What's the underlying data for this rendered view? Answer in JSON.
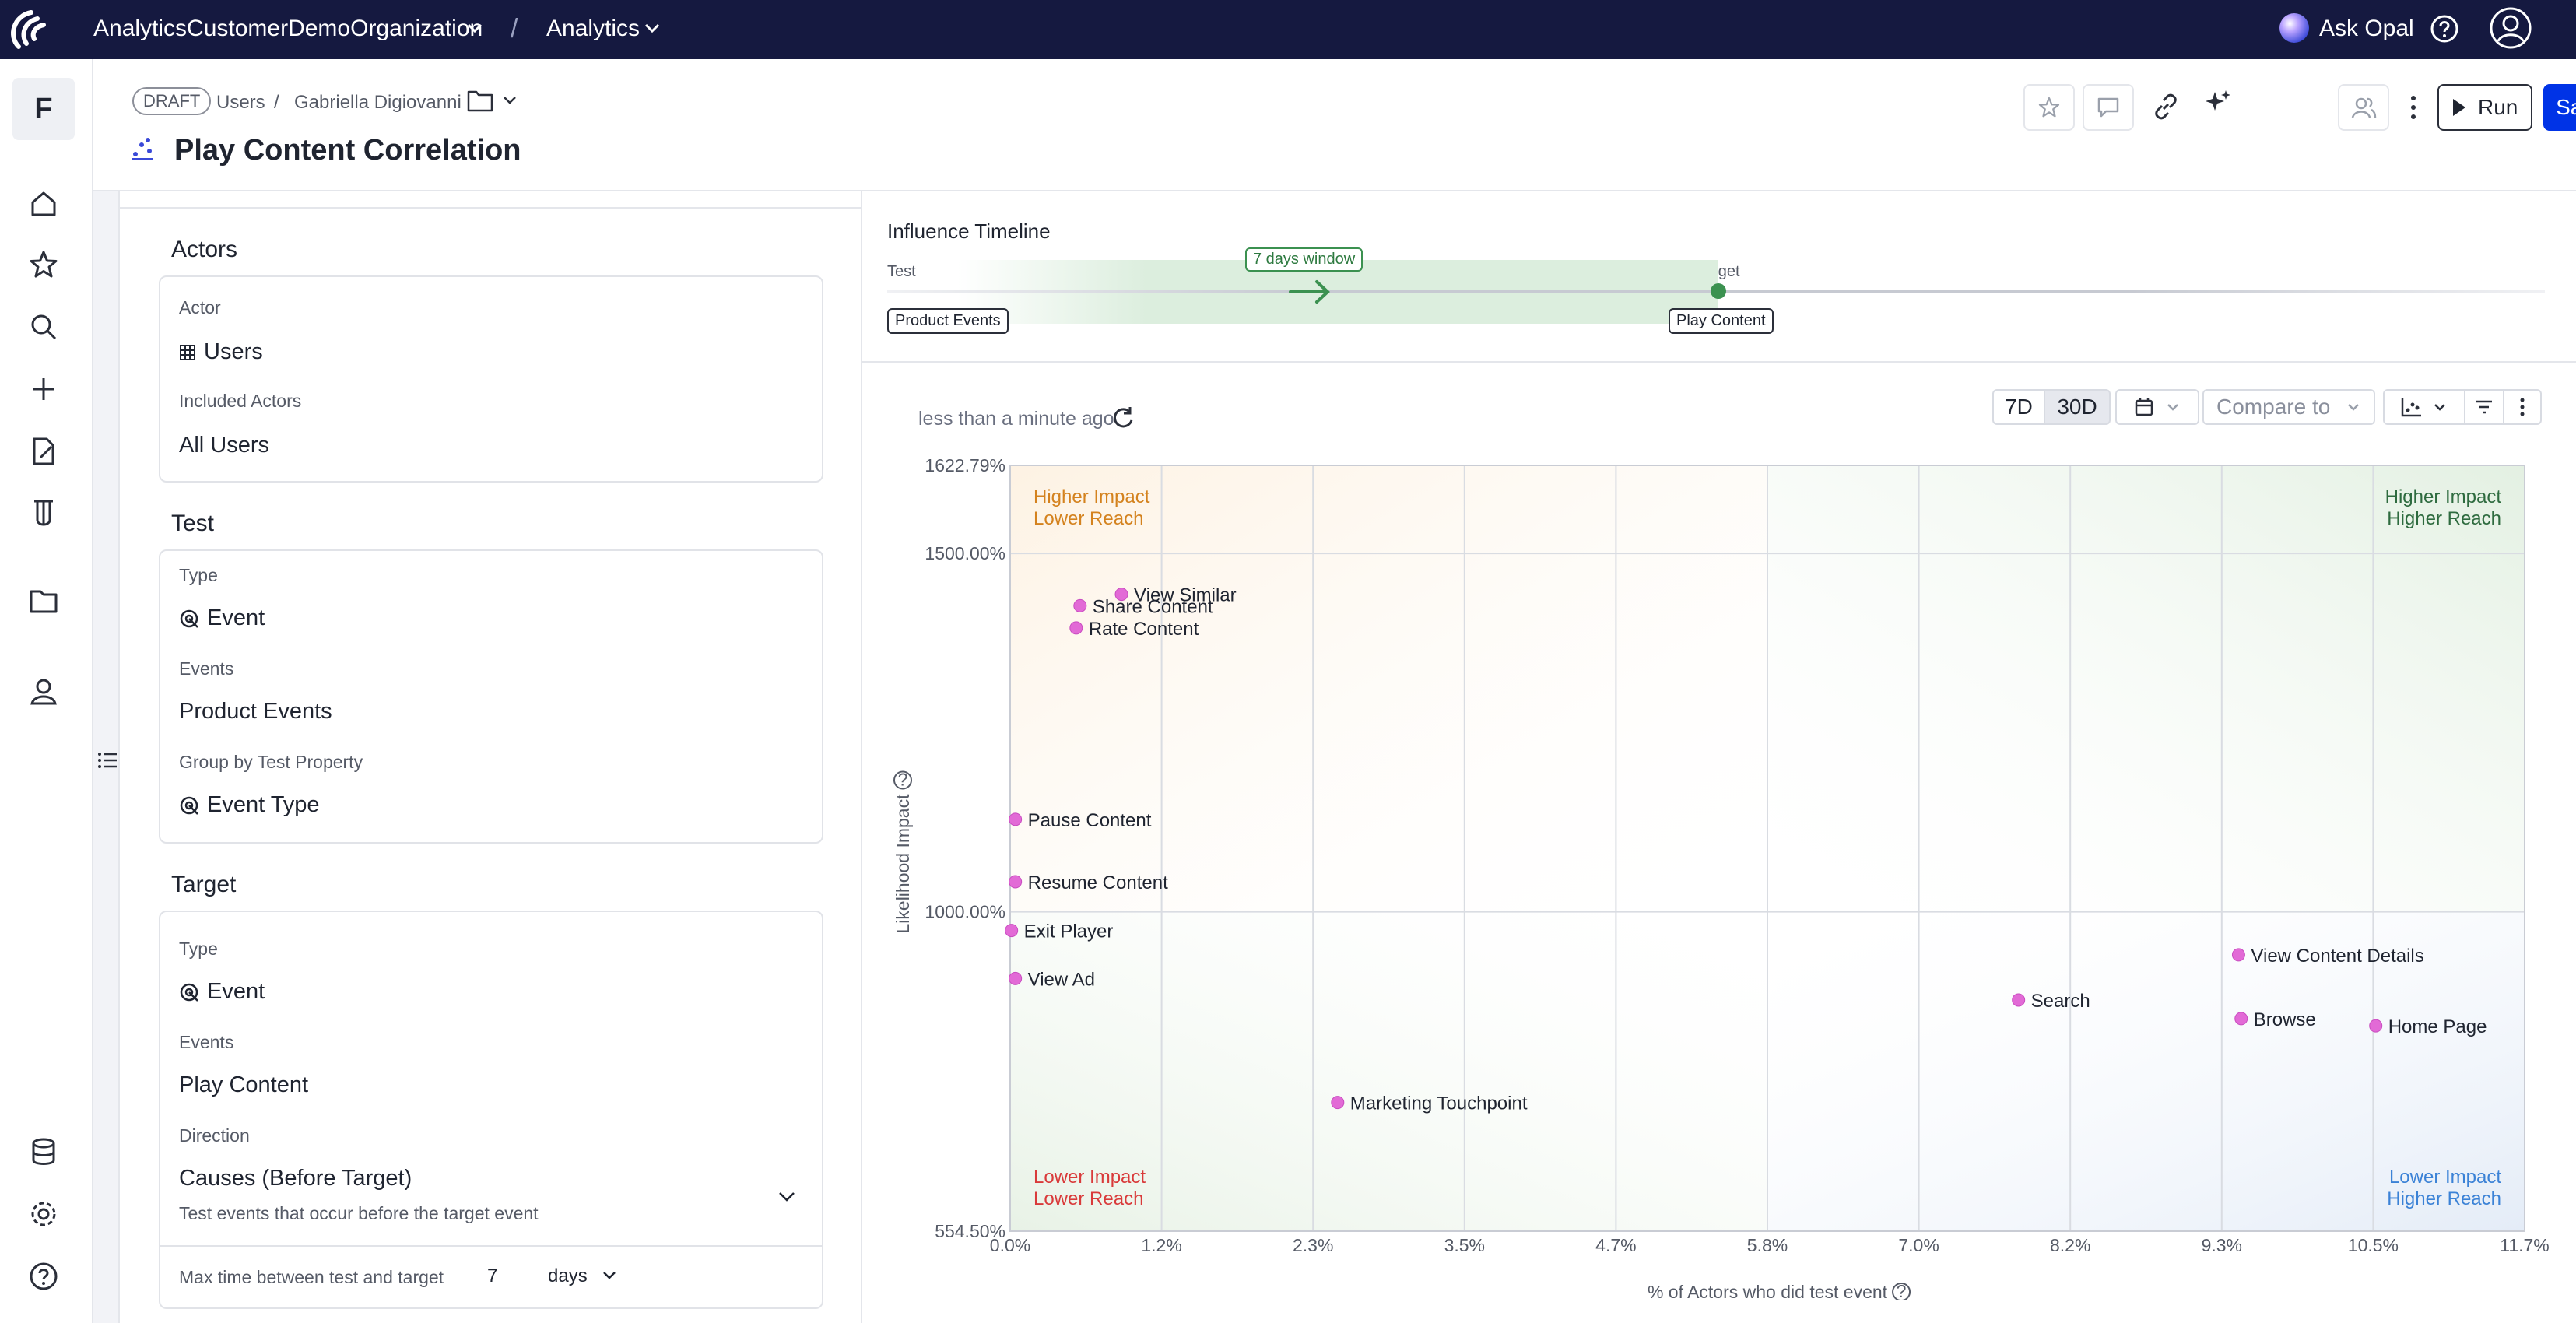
{
  "topbar": {
    "org": "AnalyticsCustomerDemoOrganization",
    "separator": "/",
    "app": "Analytics",
    "ask_opal": "Ask Opal"
  },
  "rail": {
    "workspace_initial": "F"
  },
  "header": {
    "status": "DRAFT",
    "breadcrumb": [
      "Users",
      "/",
      "Gabriella Digiovanni"
    ],
    "title": "Play Content Correlation",
    "run_label": "Run",
    "save_label": "Save"
  },
  "config": {
    "actors": {
      "title": "Actors",
      "actor_label": "Actor",
      "actor_value": "Users",
      "included_label": "Included Actors",
      "included_value": "All Users"
    },
    "test": {
      "title": "Test",
      "type_label": "Type",
      "type_value": "Event",
      "events_label": "Events",
      "events_value": "Product Events",
      "group_label": "Group by Test Property",
      "group_value": "Event Type"
    },
    "target": {
      "title": "Target",
      "type_label": "Type",
      "type_value": "Event",
      "events_label": "Events",
      "events_value": "Play Content",
      "direction_label": "Direction",
      "direction_value": "Causes (Before Target)",
      "direction_help": "Test events that occur before the target event",
      "max_time_label": "Max time between test and target",
      "max_time_value": "7",
      "max_time_unit": "days"
    }
  },
  "timeline": {
    "title": "Influence Timeline",
    "test_label": "Test",
    "target_label": "Target",
    "window_label": "7 days window",
    "test_event": "Product Events",
    "target_event": "Play Content"
  },
  "toolbar": {
    "updated": "less than a minute ago",
    "range_7d": "7D",
    "range_30d": "30D",
    "compare_label": "Compare to",
    "active_range": "30D"
  },
  "colors": {
    "brand": "#0033e6",
    "navbar": "#151940",
    "point": "#e26ad6",
    "q_top_left": "#d4821e",
    "q_top_right": "#2e6b3f",
    "q_bottom_left": "#d93a3a",
    "q_bottom_right": "#3b82d6"
  },
  "chart_data": {
    "type": "scatter",
    "xlabel": "% of Actors who did test event",
    "ylabel": "Likelihood Impact",
    "xlim": [
      0,
      11.7
    ],
    "ylim": [
      554.5,
      1622.79
    ],
    "x_ticks": [
      "0.0%",
      "1.2%",
      "2.3%",
      "3.5%",
      "4.7%",
      "5.8%",
      "7.0%",
      "8.2%",
      "9.3%",
      "10.5%",
      "11.7%"
    ],
    "y_ticks": [
      {
        "label": "1622.79%",
        "value": 1622.79
      },
      {
        "label": "1500.00%",
        "value": 1500
      },
      {
        "label": "1000.00%",
        "value": 1000
      },
      {
        "label": "554.50%",
        "value": 554.5
      }
    ],
    "quadrants": {
      "top_left": [
        "Higher Impact",
        "Lower Reach"
      ],
      "top_right": [
        "Higher Impact",
        "Higher Reach"
      ],
      "bottom_left": [
        "Lower Impact",
        "Lower Reach"
      ],
      "bottom_right": [
        "Lower Impact",
        "Higher Reach"
      ]
    },
    "points": [
      {
        "label": "View Similar",
        "x": 0.86,
        "y": 1443
      },
      {
        "label": "Share Content",
        "x": 0.54,
        "y": 1427
      },
      {
        "label": "Rate Content",
        "x": 0.51,
        "y": 1396
      },
      {
        "label": "Pause Content",
        "x": 0.04,
        "y": 1129
      },
      {
        "label": "Resume Content",
        "x": 0.04,
        "y": 1042
      },
      {
        "label": "Exit Player",
        "x": 0.01,
        "y": 974
      },
      {
        "label": "View Ad",
        "x": 0.04,
        "y": 907
      },
      {
        "label": "View Content Details",
        "x": 9.49,
        "y": 940
      },
      {
        "label": "Search",
        "x": 7.79,
        "y": 877
      },
      {
        "label": "Browse",
        "x": 9.51,
        "y": 851
      },
      {
        "label": "Home Page",
        "x": 10.55,
        "y": 841
      },
      {
        "label": "Marketing Touchpoint",
        "x": 2.53,
        "y": 734
      }
    ]
  }
}
